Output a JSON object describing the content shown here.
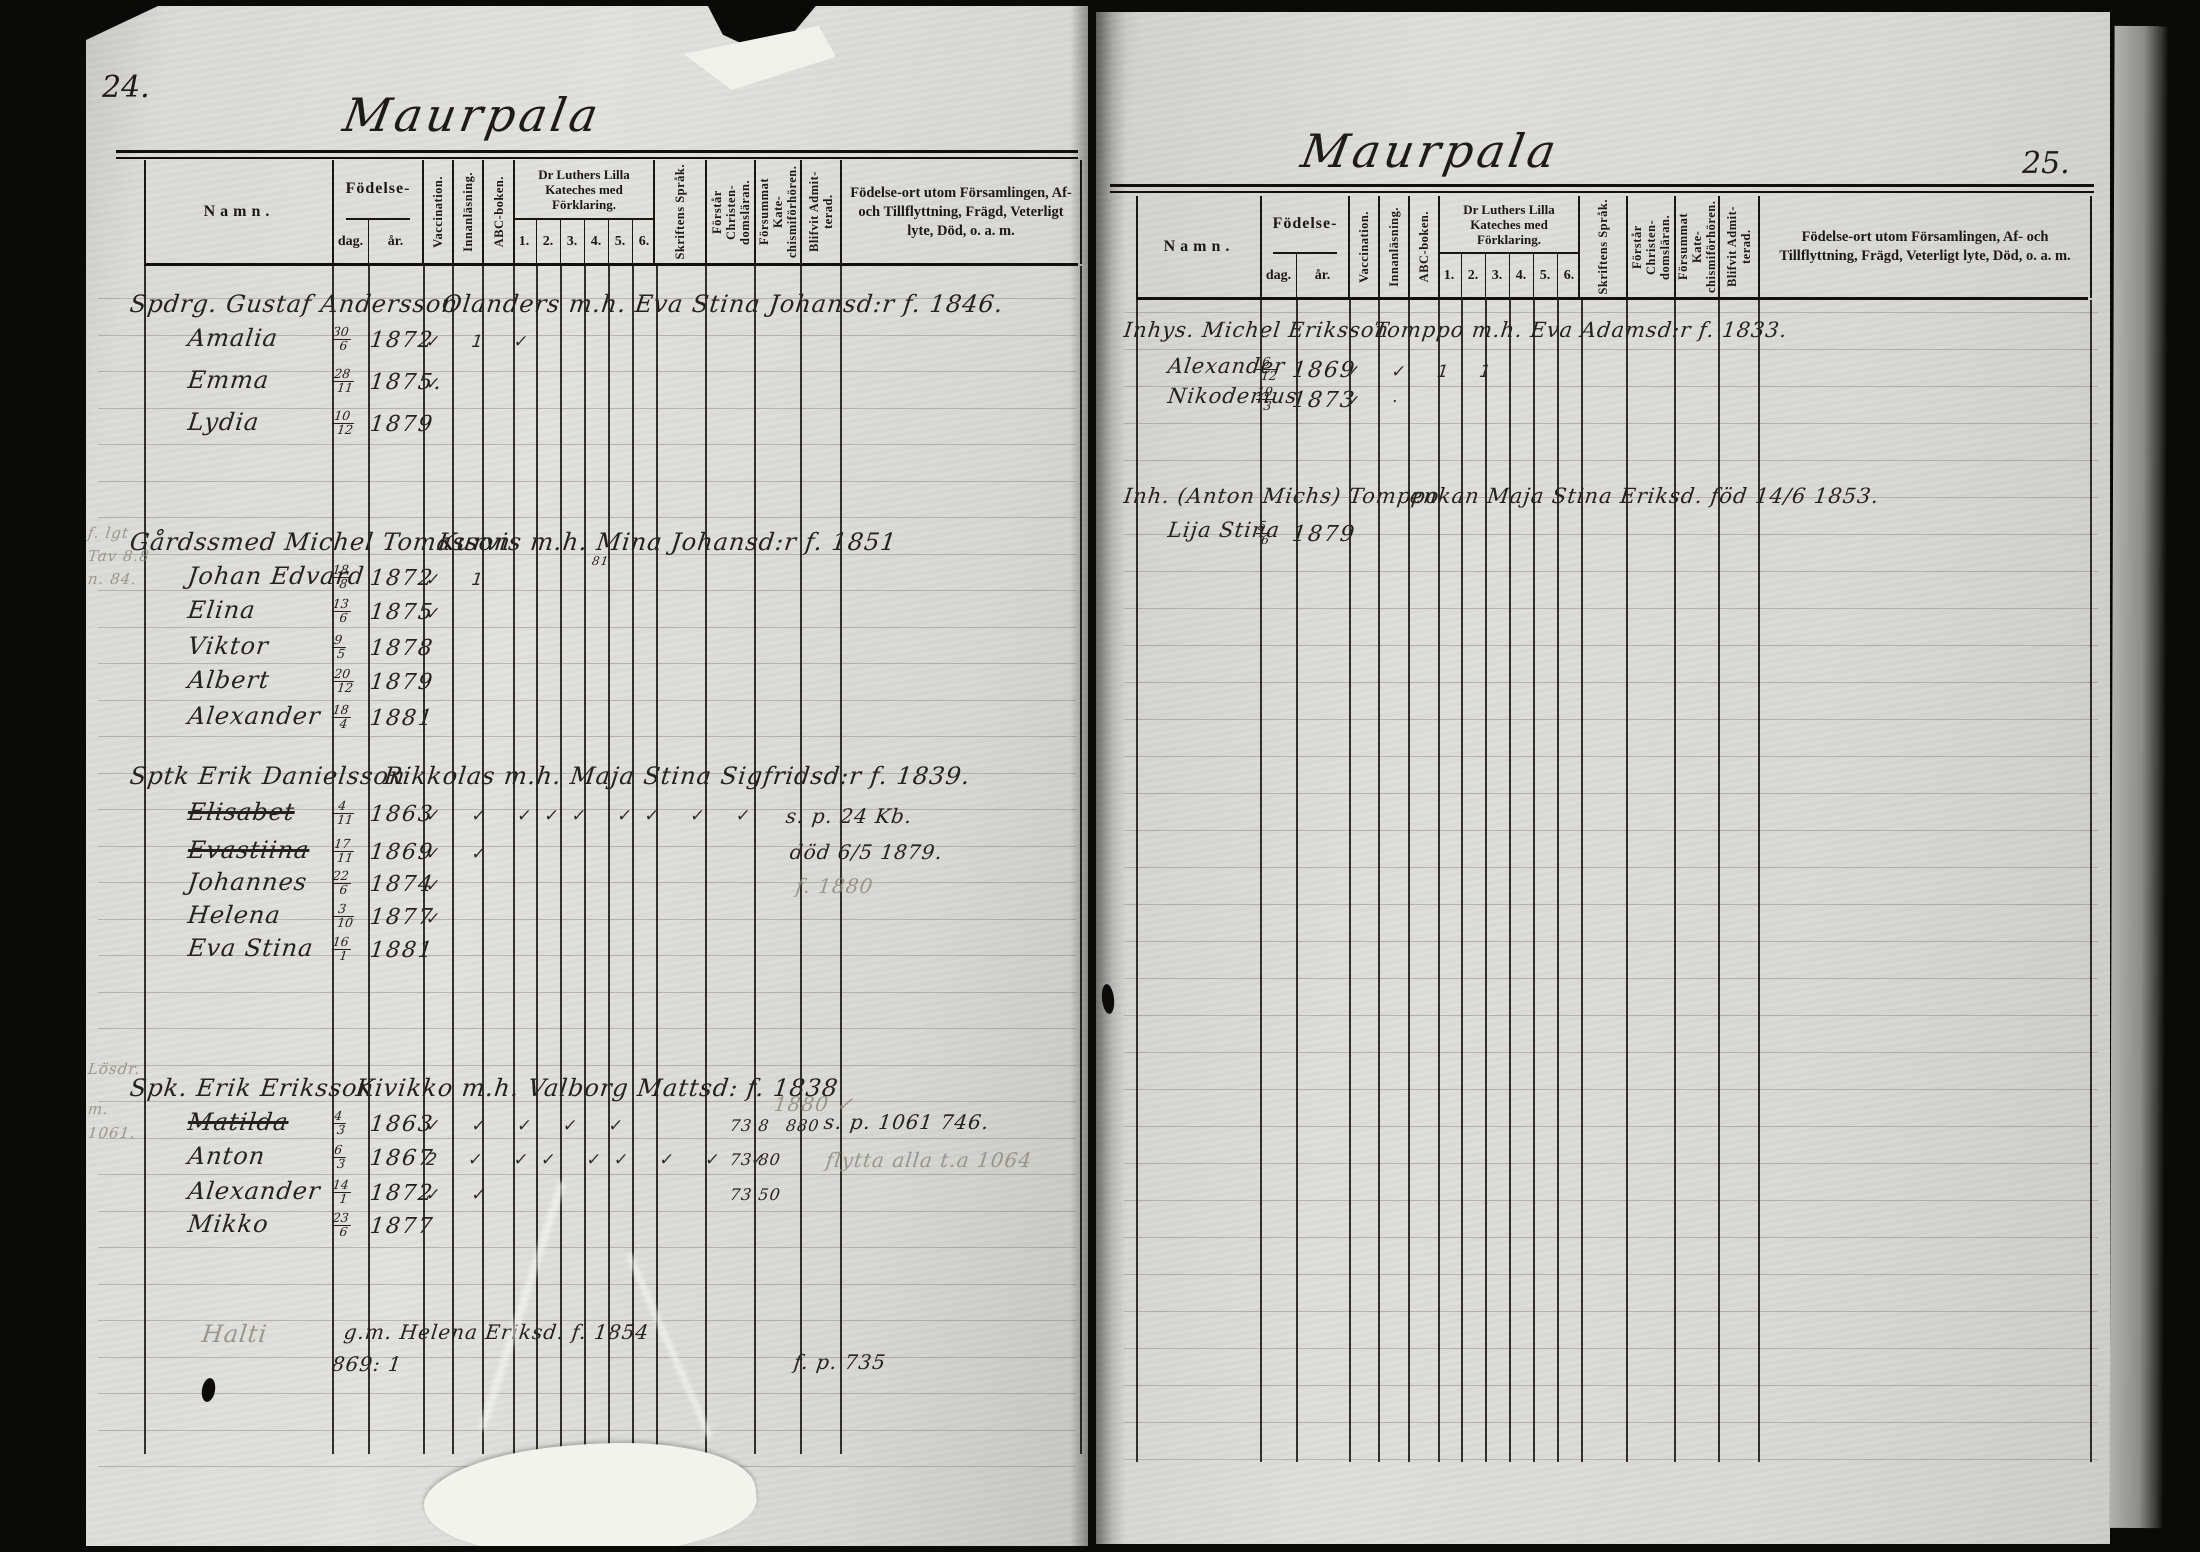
{
  "header_labels": {
    "namn": "Namn.",
    "fodelse": "Födelse-",
    "dag": "dag.",
    "ar": "år.",
    "vaccination": "Vaccination.",
    "innanlasning": "Innanläsning.",
    "abc_boken": "ABC-boken.",
    "kateches": "Dr Luthers Lilla Kateches med Förklaring.",
    "kateches_cols": [
      "1.",
      "2.",
      "3.",
      "4.",
      "5.",
      "6."
    ],
    "skriftens": "Skriftens Språk.",
    "forstar": "Förstår Christen-domsläran.",
    "forsummat": "Försummat Kate-chismiförhören.",
    "blifvit": "Blifvit Admit-terad.",
    "remarks": "Födelse-ort utom Församlingen, Af- och Tillflyttning, Frägd, Veterligt lyte, Död, o. a. m."
  },
  "left_page": {
    "page_number": "24.",
    "title": "Maurpala",
    "families": [
      {
        "head": "Spdrg. Gustaf Andersson",
        "cont": "Olanders m.h. Eva Stina Johansd:r f. 1846.",
        "margin_note": [],
        "children": [
          {
            "name": "Amalia",
            "day": "30",
            "month": "6",
            "year": "1872",
            "marks": "✓ 1 ✓"
          },
          {
            "name": "Emma",
            "day": "28",
            "month": "11",
            "year": "1875.",
            "marks": "✓"
          },
          {
            "name": "Lydia",
            "day": "10",
            "month": "12",
            "year": "1879",
            "marks": ""
          }
        ],
        "remarks": []
      },
      {
        "head": "Gårdssmed Michel Tomasson",
        "cont": "Kurvis m.h. Mina Johansd:r f. 1851",
        "cont_sub": "81",
        "margin_note": [
          "f. lgt",
          "Tav 8.8",
          "n. 84."
        ],
        "children": [
          {
            "name": "Johan Edvard",
            "day": "18",
            "month": "8",
            "year": "1872",
            "marks": "✓ 1"
          },
          {
            "name": "Elina",
            "day": "13",
            "month": "6",
            "year": "1875",
            "marks": "✓"
          },
          {
            "name": "Viktor",
            "day": "9",
            "month": "5",
            "year": "1878",
            "marks": ""
          },
          {
            "name": "Albert",
            "day": "20",
            "month": "12",
            "year": "1879",
            "marks": ""
          },
          {
            "name": "Alexander",
            "day": "18",
            "month": "4",
            "year": "1881",
            "marks": ""
          }
        ],
        "remarks": []
      },
      {
        "head": "Sptk Erik Danielsson",
        "cont": "Rikkolas m.h. Maja Stina Sigfridsd:r f. 1839.",
        "margin_note": [],
        "children": [
          {
            "name": "Elisabet",
            "struck": true,
            "day": "4",
            "month": "11",
            "year": "1863",
            "marks": "✓ ✓ ✓✓✓ ✓✓ ✓ ✓"
          },
          {
            "name": "Evastiina",
            "struck": true,
            "day": "17",
            "month": "11",
            "year": "1869",
            "marks": "✓ ✓"
          },
          {
            "name": "Johannes",
            "day": "22",
            "month": "6",
            "year": "1874",
            "marks": "✓"
          },
          {
            "name": "Helena",
            "day": "3",
            "month": "10",
            "year": "1877",
            "marks": "✓"
          },
          {
            "name": "Eva Stina",
            "day": "16",
            "month": "1",
            "year": "1881",
            "marks": ""
          }
        ],
        "remarks": [
          {
            "text": "s. p. 24 Kb.",
            "pencil": false
          },
          {
            "text": "död 6/5 1879.",
            "pencil": false
          },
          {
            "text": "f. 1880",
            "pencil": true
          }
        ]
      },
      {
        "head": "Spk. Erik Eriksson",
        "cont": "Kivikko m.h. Valborg Mattsd: f. 1838",
        "margin_note": [
          "Lösdr.",
          "m.",
          "1061."
        ],
        "children": [
          {
            "name": "Matilda",
            "struck": true,
            "day": "4",
            "month": "3",
            "year": "1863",
            "marks": "✓ ✓ ✓ ✓ ✓",
            "amount": "73 8"
          },
          {
            "name": "Anton",
            "day": "6",
            "month": "3",
            "year": "1867",
            "marks": "2 ✓ ✓✓ ✓✓ ✓ ✓ ✓",
            "amount": "73 80"
          },
          {
            "name": "Alexander",
            "day": "14",
            "month": "1",
            "year": "1872",
            "marks": "✓ ✓",
            "amount": "73 50"
          },
          {
            "name": "Mikko",
            "day": "23",
            "month": "6",
            "year": "1877",
            "marks": ""
          }
        ],
        "extra_amount": "880",
        "remarks": [
          {
            "text": "1880 ✓",
            "pencil": true
          },
          {
            "text": "s. p. 1061 746.",
            "pencil": false
          },
          {
            "text": "flytta alla t.a 1064",
            "pencil": true
          }
        ]
      }
    ],
    "footer_entry": {
      "name": "Halti",
      "mid": "g.m. Helena Eriksd. f. 1854",
      "sub": "869: 1",
      "right": "f. p. 735"
    }
  },
  "right_page": {
    "page_number": "25.",
    "title": "Maurpala",
    "families": [
      {
        "head": "Inhys. Michel Eriksson",
        "cont": "Tomppo m.h. Eva Adamsd:r f. 1833.",
        "margin_note": [],
        "children": [
          {
            "name": "Alexander",
            "day": "6",
            "month": "12",
            "year": "1869",
            "marks": "✓ ✓ 1 1"
          },
          {
            "name": "Nikodemus",
            "day": "19",
            "month": "3",
            "year": "1873",
            "marks": "✓ ·"
          }
        ],
        "remarks": []
      },
      {
        "head": "Inh. (Anton Michs) Tomppo",
        "cont": "enkan Maja Stina Eriksd. föd 14/6 1853.",
        "margin_note": [],
        "children": [
          {
            "name": "Lija Stina",
            "day": "5",
            "month": "6",
            "year": "1879",
            "marks": ""
          }
        ],
        "remarks": []
      }
    ]
  }
}
